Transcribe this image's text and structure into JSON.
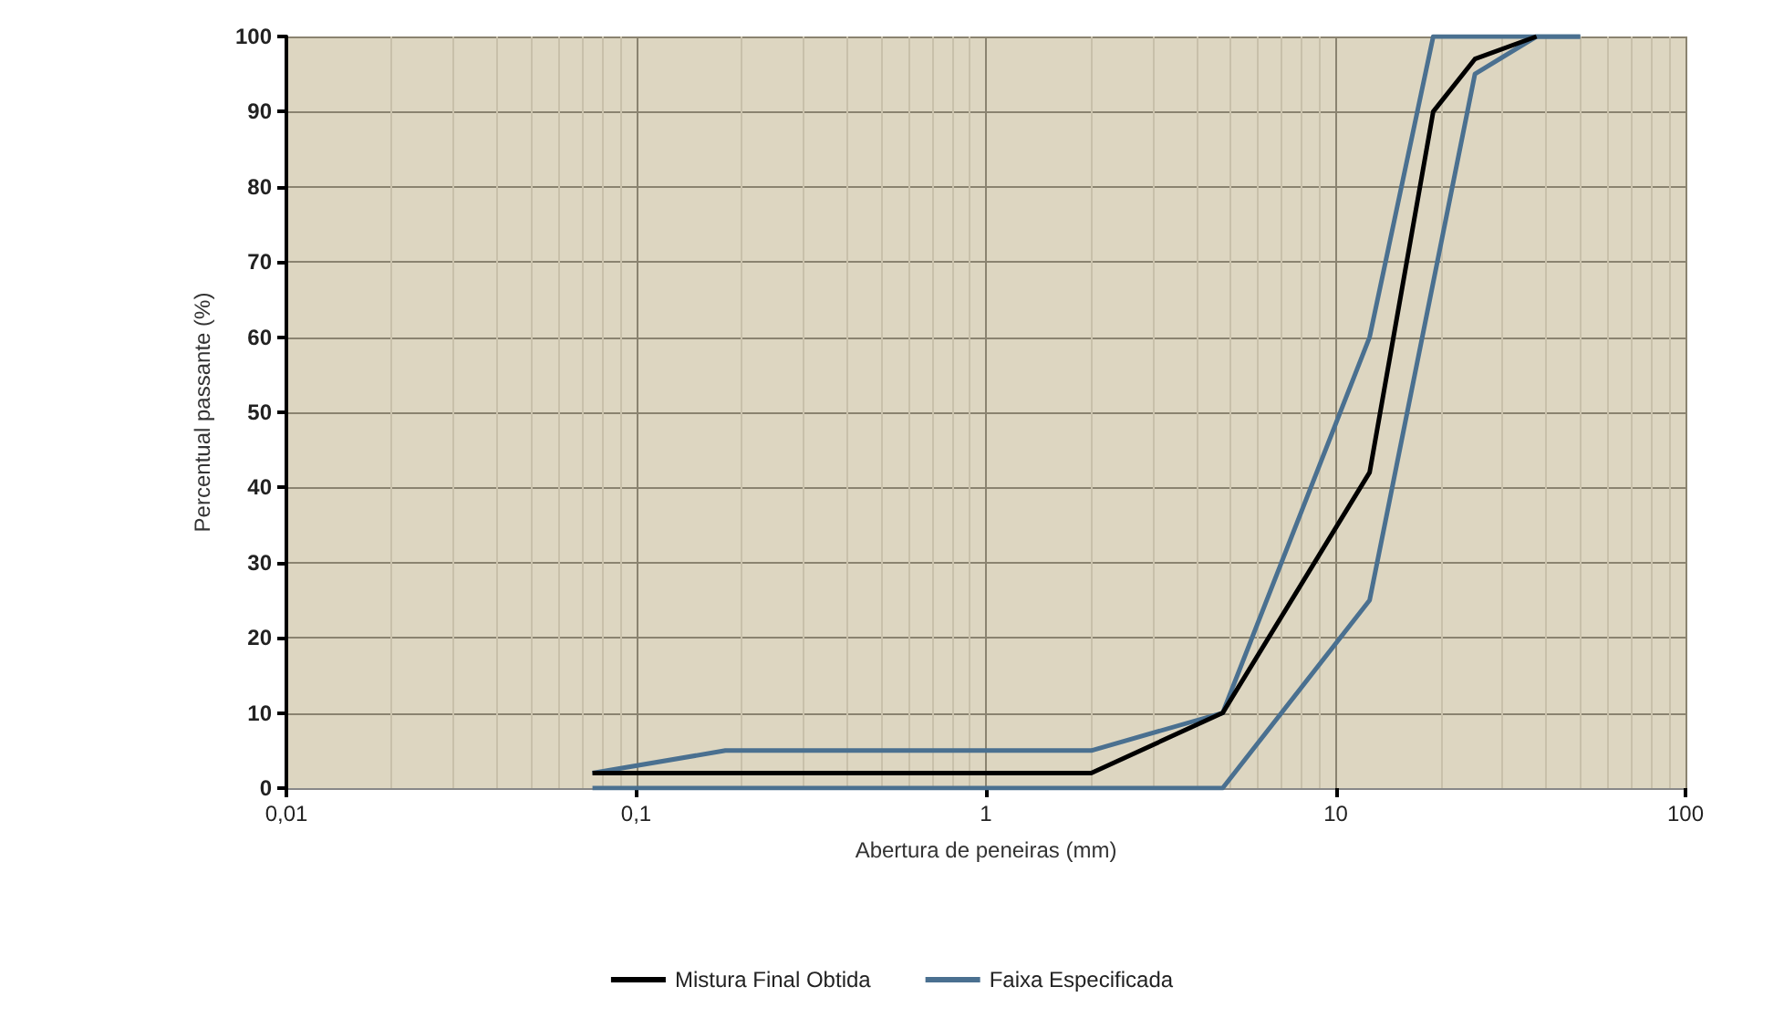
{
  "chart_data": {
    "type": "line",
    "xlabel": "Abertura de peneiras (mm)",
    "ylabel": "Percentual passante (%)",
    "log": "x",
    "grid": true,
    "legend": "bottom",
    "marker": "none",
    "line_style": "solid",
    "xlim": [
      0.01,
      100
    ],
    "xticks": [
      {
        "value": 0.01,
        "label": "0,01"
      },
      {
        "value": 0.1,
        "label": "0,1"
      },
      1,
      10,
      100
    ],
    "ylim": [
      0,
      100
    ],
    "yticks": [
      0,
      10,
      20,
      30,
      40,
      50,
      60,
      70,
      80,
      90,
      100
    ],
    "series": [
      {
        "name": "Mistura Final Obtida",
        "color": "#000000",
        "x": [
          0.075,
          2.0,
          4.75,
          12.5,
          19,
          25,
          37.5
        ],
        "values": [
          2,
          2,
          10,
          42,
          90,
          97,
          100
        ]
      },
      {
        "name": "Faixa Especificada",
        "color": "#4a7090",
        "x": [
          0.075,
          0.18,
          2.0,
          4.75,
          12.5,
          19,
          50
        ],
        "values": [
          2,
          5,
          5,
          10,
          60,
          100,
          100
        ]
      },
      {
        "color": "#4a7090",
        "x": [
          0.075,
          4.75,
          12.5,
          25,
          37.5,
          50
        ],
        "values": [
          0,
          0,
          25,
          95,
          100,
          100
        ]
      }
    ]
  }
}
